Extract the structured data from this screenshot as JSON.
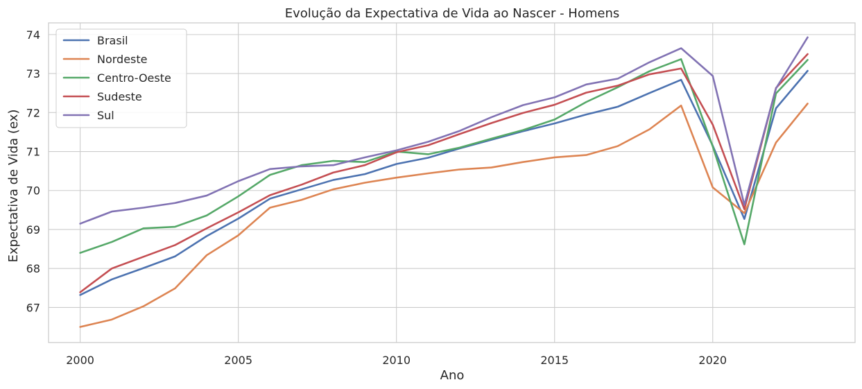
{
  "chart_data": {
    "type": "line",
    "title": "Evolução da Expectativa de Vida ao Nascer - Homens",
    "xlabel": "Ano",
    "ylabel": "Expectativa de Vida (ex)",
    "xlim": [
      1999,
      2024.5
    ],
    "ylim": [
      66.1,
      74.3
    ],
    "xticks": [
      2000,
      2005,
      2010,
      2015,
      2020
    ],
    "yticks": [
      67,
      68,
      69,
      70,
      71,
      72,
      73,
      74
    ],
    "grid": true,
    "legend_position": "top-left",
    "x": [
      2000,
      2001,
      2002,
      2003,
      2004,
      2005,
      2006,
      2007,
      2008,
      2009,
      2010,
      2011,
      2012,
      2013,
      2014,
      2015,
      2016,
      2017,
      2018,
      2019,
      2020,
      2021,
      2022,
      2023
    ],
    "series": [
      {
        "name": "Brasil",
        "color": "#4c72b0",
        "values": [
          67.32,
          67.72,
          68.01,
          68.31,
          68.83,
          69.28,
          69.79,
          70.03,
          70.27,
          70.42,
          70.68,
          70.84,
          71.08,
          71.3,
          71.52,
          71.72,
          71.95,
          72.15,
          72.5,
          72.84,
          71.15,
          69.27,
          72.11,
          73.07
        ]
      },
      {
        "name": "Nordeste",
        "color": "#dd8452",
        "values": [
          66.5,
          66.69,
          67.03,
          67.49,
          68.34,
          68.85,
          69.56,
          69.76,
          70.03,
          70.2,
          70.33,
          70.44,
          70.54,
          70.59,
          70.73,
          70.85,
          70.91,
          71.14,
          71.57,
          72.18,
          70.08,
          69.42,
          71.23,
          72.23
        ]
      },
      {
        "name": "Centro-Oeste",
        "color": "#55a868",
        "values": [
          68.4,
          68.68,
          69.03,
          69.07,
          69.36,
          69.85,
          70.4,
          70.65,
          70.76,
          70.73,
          71.0,
          70.93,
          71.1,
          71.33,
          71.55,
          71.82,
          72.27,
          72.65,
          73.06,
          73.37,
          71.13,
          68.62,
          72.49,
          73.35
        ]
      },
      {
        "name": "Sudeste",
        "color": "#c44e52",
        "values": [
          67.39,
          68.0,
          68.3,
          68.6,
          69.03,
          69.44,
          69.88,
          70.15,
          70.46,
          70.65,
          70.98,
          71.16,
          71.45,
          71.73,
          71.99,
          72.2,
          72.51,
          72.69,
          72.98,
          73.13,
          71.69,
          69.52,
          72.63,
          73.5
        ]
      },
      {
        "name": "Sul",
        "color": "#8172b3",
        "values": [
          69.15,
          69.46,
          69.56,
          69.68,
          69.87,
          70.24,
          70.55,
          70.62,
          70.65,
          70.85,
          71.03,
          71.25,
          71.53,
          71.88,
          72.19,
          72.39,
          72.72,
          72.87,
          73.29,
          73.65,
          72.94,
          69.63,
          72.62,
          73.93
        ]
      }
    ]
  }
}
